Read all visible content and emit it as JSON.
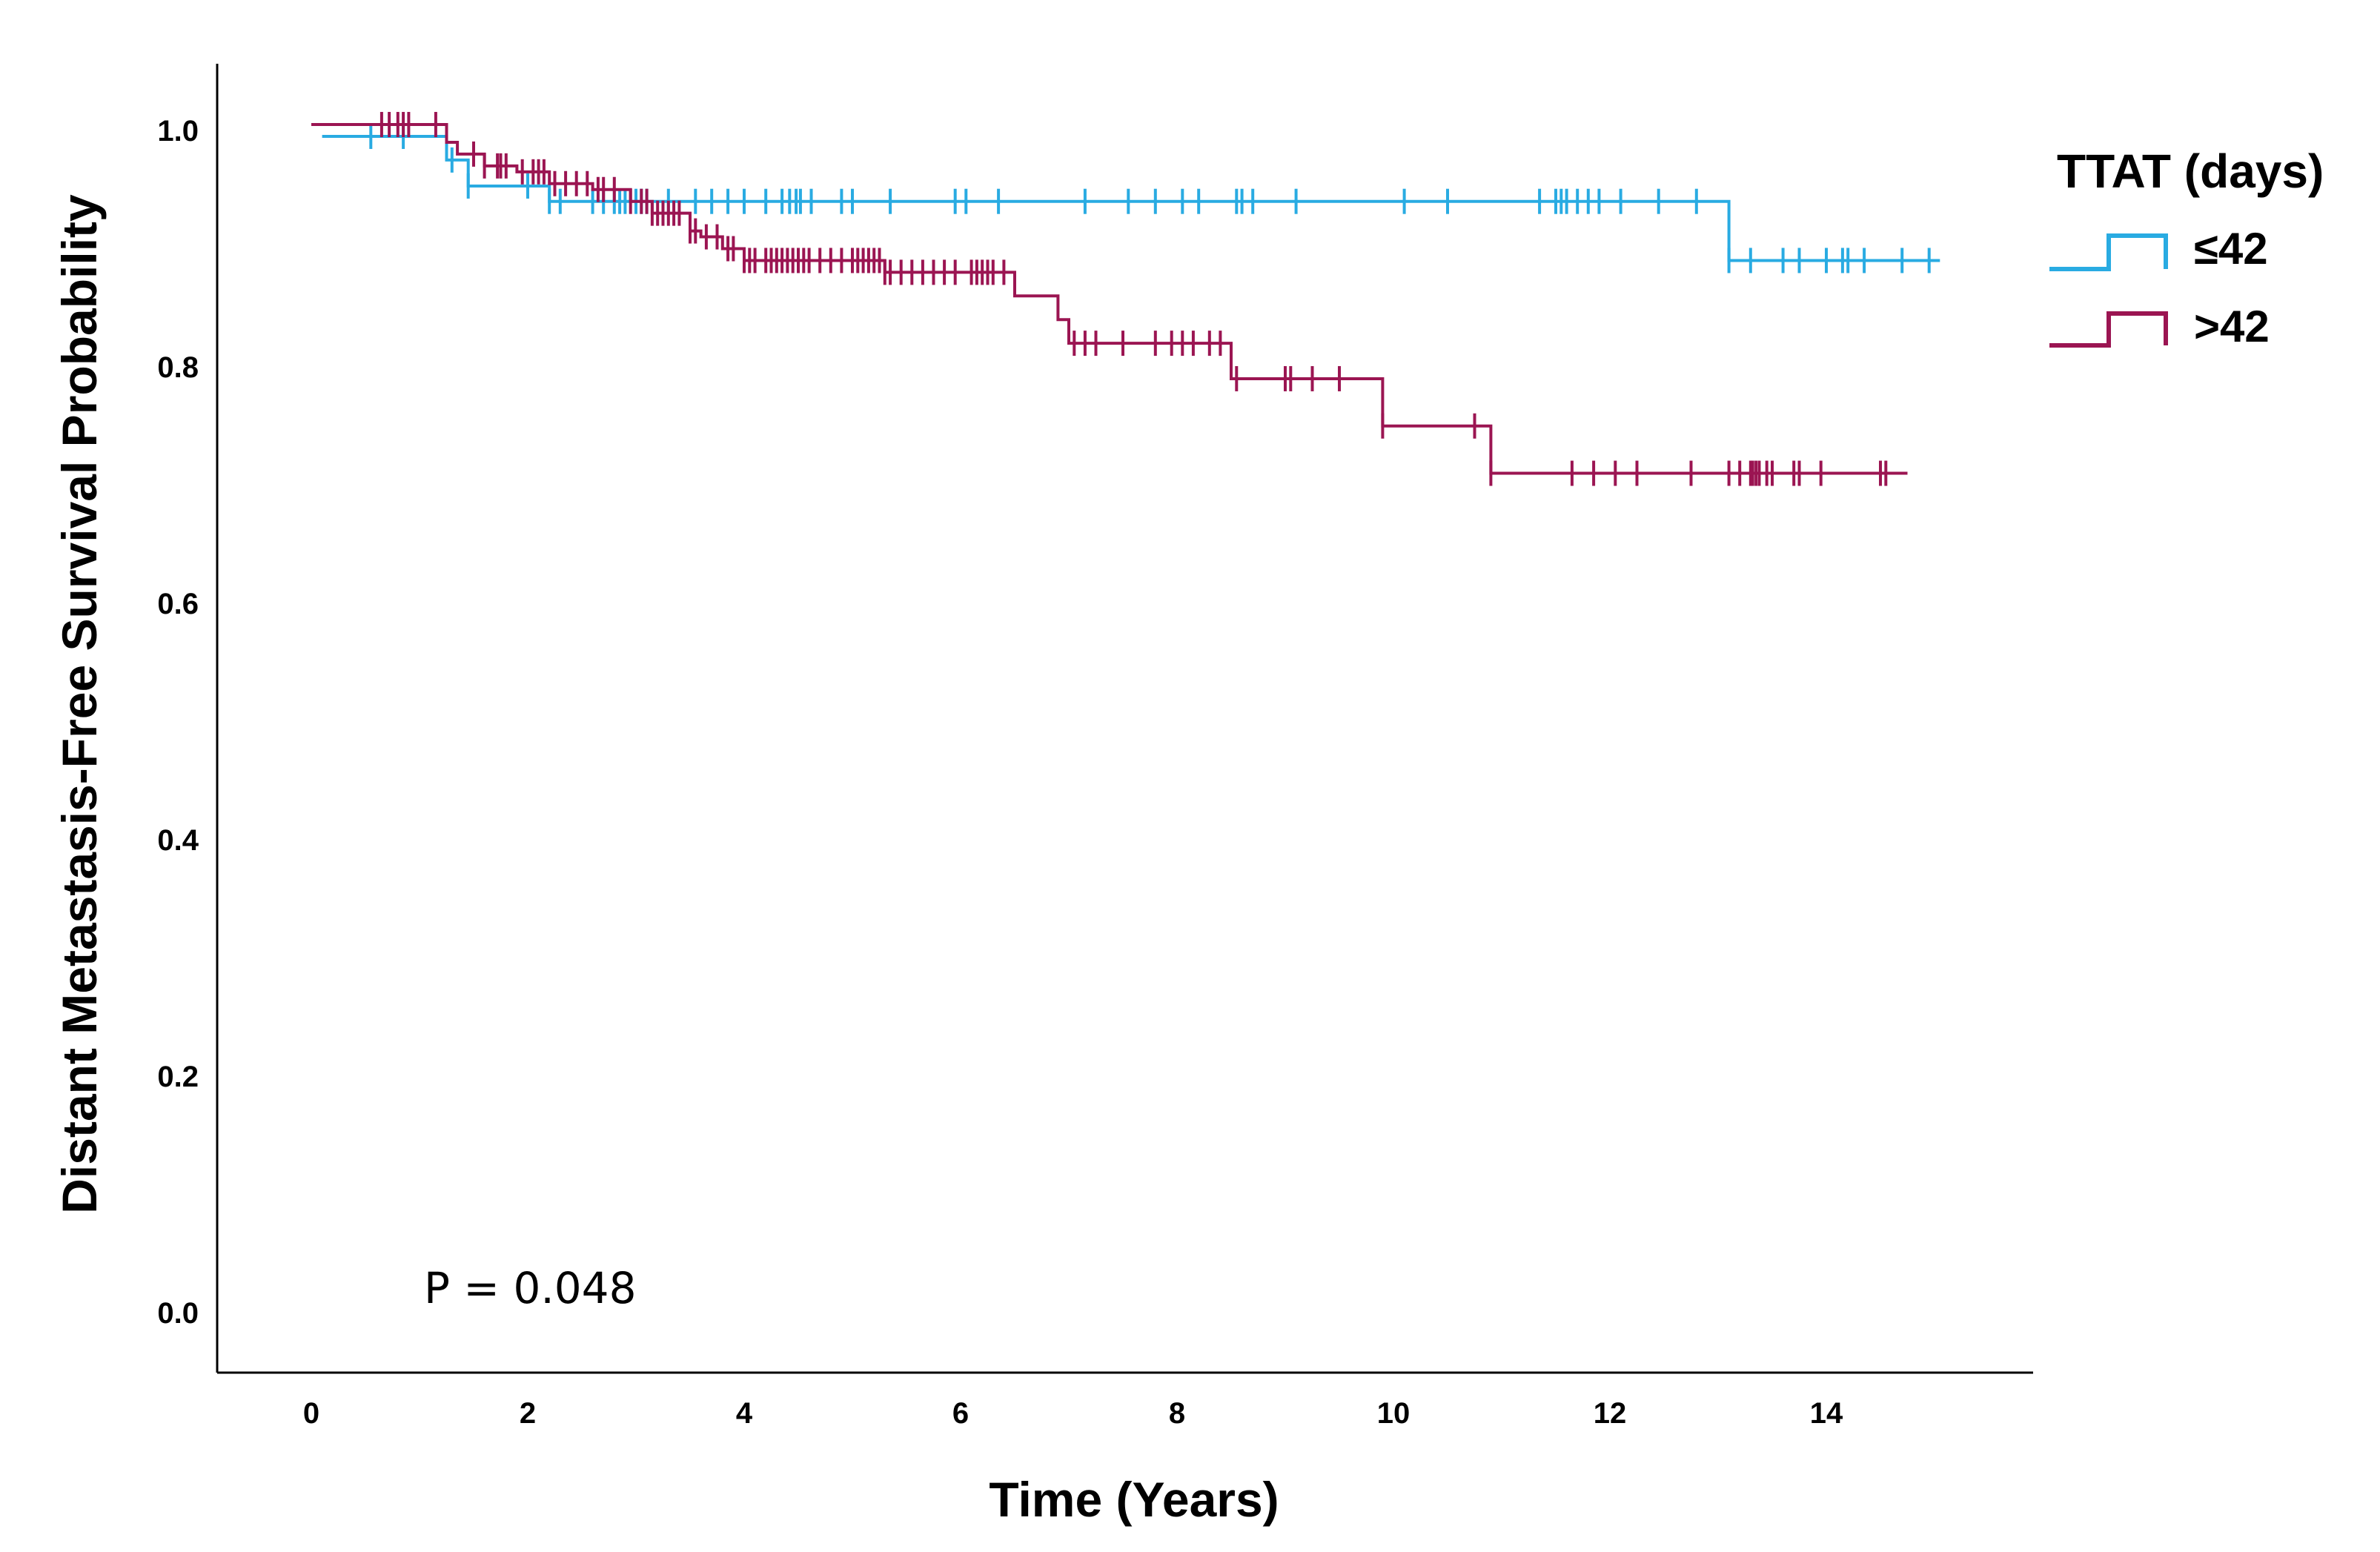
{
  "chart_data": {
    "type": "line",
    "subtype": "kaplan-meier",
    "xlabel": "Time (Years)",
    "ylabel": "Distant Metastasis-Free Survival Probability",
    "xlim": [
      -0.8,
      16.2
    ],
    "ylim": [
      -0.05,
      1.06
    ],
    "xticks": [
      "0",
      "2",
      "4",
      "6",
      "8",
      "10",
      "12",
      "14"
    ],
    "yticks": [
      "0.0",
      "0.2",
      "0.4",
      "0.6",
      "0.8",
      "1.0"
    ],
    "legend": {
      "title": "TTAT (days)",
      "position": "top-right"
    },
    "annotation": "P = 0.048",
    "series": [
      {
        "name": "≤42",
        "color": "#29abe2",
        "steps": [
          [
            0.1,
            0.995
          ],
          [
            1.25,
            0.975
          ],
          [
            1.45,
            0.953
          ],
          [
            2.2,
            0.94
          ],
          [
            13.1,
            0.89
          ],
          [
            15.05,
            0.89
          ]
        ],
        "censors": [
          0.55,
          0.85,
          1.3,
          1.45,
          2.0,
          2.2,
          2.3,
          2.6,
          2.7,
          2.8,
          2.85,
          2.9,
          3.0,
          3.05,
          3.1,
          3.3,
          3.55,
          3.7,
          3.85,
          4.0,
          4.2,
          4.35,
          4.42,
          4.48,
          4.52,
          4.62,
          4.9,
          5.0,
          5.35,
          5.95,
          6.05,
          6.35,
          7.15,
          7.55,
          7.8,
          8.05,
          8.2,
          8.55,
          8.6,
          8.7,
          9.1,
          10.1,
          10.5,
          11.35,
          11.5,
          11.55,
          11.6,
          11.7,
          11.8,
          11.9,
          12.1,
          12.45,
          12.8,
          13.1,
          13.3,
          13.6,
          13.75,
          14.0,
          14.15,
          14.2,
          14.35,
          14.7,
          14.95
        ]
      },
      {
        "name": ">42",
        "color": "#9b1552",
        "steps": [
          [
            0.0,
            1.005
          ],
          [
            1.25,
            0.99
          ],
          [
            1.35,
            0.98
          ],
          [
            1.6,
            0.97
          ],
          [
            1.9,
            0.965
          ],
          [
            2.2,
            0.955
          ],
          [
            2.6,
            0.95
          ],
          [
            2.95,
            0.94
          ],
          [
            3.15,
            0.93
          ],
          [
            3.5,
            0.915
          ],
          [
            3.6,
            0.91
          ],
          [
            3.8,
            0.9
          ],
          [
            4.0,
            0.89
          ],
          [
            5.3,
            0.88
          ],
          [
            6.5,
            0.86
          ],
          [
            6.9,
            0.84
          ],
          [
            7.0,
            0.82
          ],
          [
            8.5,
            0.79
          ],
          [
            9.9,
            0.75
          ],
          [
            10.9,
            0.71
          ],
          [
            14.75,
            0.71
          ]
        ],
        "censors": [
          0.65,
          0.72,
          0.8,
          0.85,
          0.9,
          1.15,
          1.5,
          1.6,
          1.72,
          1.75,
          1.8,
          1.95,
          2.05,
          2.1,
          2.15,
          2.25,
          2.35,
          2.45,
          2.55,
          2.65,
          2.7,
          2.8,
          2.95,
          3.05,
          3.1,
          3.15,
          3.2,
          3.25,
          3.3,
          3.35,
          3.4,
          3.5,
          3.55,
          3.65,
          3.75,
          3.85,
          3.9,
          4.0,
          4.05,
          4.1,
          4.2,
          4.25,
          4.3,
          4.35,
          4.4,
          4.45,
          4.5,
          4.55,
          4.6,
          4.7,
          4.8,
          4.9,
          5.0,
          5.05,
          5.1,
          5.15,
          5.2,
          5.25,
          5.3,
          5.35,
          5.45,
          5.55,
          5.65,
          5.75,
          5.85,
          5.95,
          6.1,
          6.15,
          6.2,
          6.25,
          6.3,
          6.4,
          7.05,
          7.15,
          7.25,
          7.5,
          7.8,
          7.95,
          8.05,
          8.15,
          8.3,
          8.4,
          8.55,
          9.0,
          9.05,
          9.25,
          9.5,
          9.9,
          10.75,
          10.9,
          11.65,
          11.85,
          12.05,
          12.25,
          12.75,
          13.1,
          13.2,
          13.3,
          13.32,
          13.35,
          13.38,
          13.45,
          13.5,
          13.7,
          13.75,
          13.95,
          14.5,
          14.55
        ]
      }
    ]
  }
}
